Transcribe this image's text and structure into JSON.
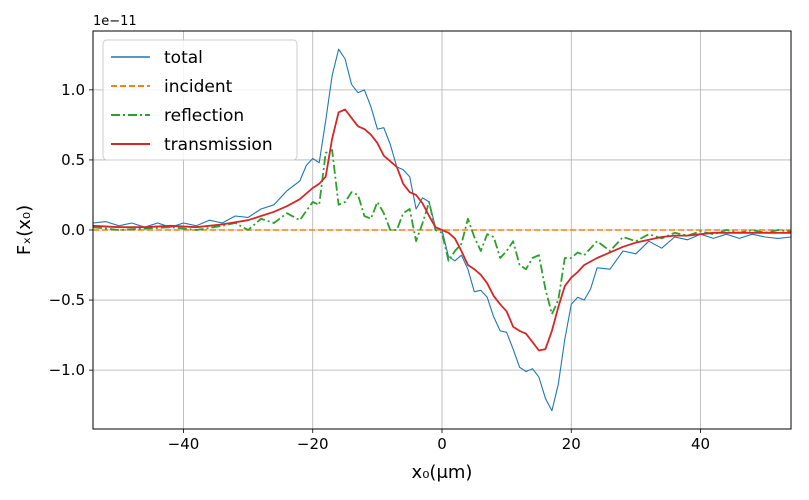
{
  "chart_data": {
    "type": "line",
    "xlabel": "x₀(μm)",
    "ylabel": "Fₓ(x₀)",
    "y_offset_label": "1e−11",
    "y_multiplier": 1e-11,
    "xlim": [
      -54,
      54
    ],
    "ylim": [
      -1.42,
      1.42
    ],
    "x_ticks": [
      -40,
      -20,
      0,
      20,
      40
    ],
    "x_tick_labels": [
      "−40",
      "−20",
      "0",
      "20",
      "40"
    ],
    "y_ticks": [
      -1.0,
      -0.5,
      0.0,
      0.5,
      1.0
    ],
    "y_tick_labels": [
      "−1.0",
      "−0.5",
      "0.0",
      "0.5",
      "1.0"
    ],
    "grid": true,
    "legend_position": "top-left",
    "series": [
      {
        "name": "total",
        "color": "#1f77b4",
        "style": "solid",
        "width": 1.1,
        "x": [
          -54,
          -52,
          -50,
          -48,
          -46,
          -44,
          -42,
          -40,
          -38,
          -36,
          -34,
          -32,
          -30,
          -28,
          -26,
          -24,
          -22,
          -21,
          -20,
          -19,
          -18,
          -17,
          -16,
          -15,
          -14,
          -13,
          -12,
          -11,
          -10,
          -9,
          -8,
          -7,
          -6,
          -5,
          -4,
          -3,
          -2,
          -1,
          0,
          1,
          2,
          3,
          4,
          5,
          6,
          7,
          8,
          9,
          10,
          11,
          12,
          13,
          14,
          15,
          16,
          17,
          18,
          19,
          20,
          21,
          22,
          23,
          24,
          26,
          28,
          30,
          32,
          34,
          36,
          38,
          40,
          42,
          44,
          46,
          48,
          50,
          52,
          54
        ],
        "y": [
          0.05,
          0.06,
          0.03,
          0.05,
          0.02,
          0.05,
          0.02,
          0.05,
          0.03,
          0.07,
          0.05,
          0.1,
          0.09,
          0.15,
          0.18,
          0.28,
          0.35,
          0.46,
          0.51,
          0.48,
          0.78,
          1.1,
          1.29,
          1.22,
          1.04,
          0.98,
          1.0,
          0.88,
          0.72,
          0.73,
          0.61,
          0.45,
          0.43,
          0.38,
          0.15,
          0.23,
          0.2,
          0.02,
          0.0,
          -0.19,
          -0.22,
          -0.18,
          -0.28,
          -0.44,
          -0.43,
          -0.48,
          -0.62,
          -0.72,
          -0.73,
          -0.85,
          -0.98,
          -1.01,
          -0.99,
          -1.05,
          -1.2,
          -1.29,
          -1.1,
          -0.78,
          -0.53,
          -0.48,
          -0.5,
          -0.42,
          -0.27,
          -0.28,
          -0.15,
          -0.17,
          -0.08,
          -0.13,
          -0.05,
          -0.07,
          -0.03,
          -0.06,
          -0.03,
          -0.06,
          -0.03,
          -0.05,
          -0.06,
          -0.05
        ]
      },
      {
        "name": "incident",
        "color": "#ff7f0e",
        "style": "dashed",
        "width": 1.6,
        "x": [
          -54,
          54
        ],
        "y": [
          0.0,
          0.0
        ]
      },
      {
        "name": "reflection",
        "color": "#2ca02c",
        "style": "dashdot",
        "width": 1.8,
        "x": [
          -54,
          -50,
          -46,
          -42,
          -38,
          -34,
          -32,
          -30,
          -28,
          -26,
          -24,
          -22,
          -20,
          -19,
          -18,
          -17,
          -16,
          -15,
          -14,
          -13,
          -12,
          -11,
          -10,
          -9,
          -8,
          -7,
          -6,
          -5,
          -4,
          -3,
          -2,
          -1,
          0,
          1,
          2,
          3,
          4,
          5,
          6,
          7,
          8,
          9,
          10,
          11,
          12,
          13,
          14,
          15,
          16,
          17,
          18,
          19,
          20,
          21,
          22,
          24,
          26,
          28,
          30,
          32,
          34,
          36,
          38,
          40,
          42,
          44,
          46,
          48,
          50,
          52,
          54
        ],
        "y": [
          0.02,
          0.0,
          0.01,
          0.02,
          0.0,
          0.03,
          0.05,
          0.0,
          0.08,
          0.05,
          0.12,
          0.07,
          0.2,
          0.18,
          0.55,
          0.57,
          0.18,
          0.2,
          0.27,
          0.25,
          0.1,
          0.08,
          0.2,
          0.12,
          0.0,
          0.0,
          0.12,
          0.15,
          -0.08,
          0.05,
          0.2,
          0.0,
          -0.02,
          -0.22,
          -0.15,
          -0.1,
          0.08,
          -0.05,
          -0.15,
          -0.03,
          -0.05,
          -0.2,
          -0.15,
          -0.08,
          -0.25,
          -0.28,
          -0.2,
          -0.18,
          -0.42,
          -0.6,
          -0.5,
          -0.2,
          -0.2,
          -0.16,
          -0.18,
          -0.08,
          -0.15,
          -0.05,
          -0.08,
          -0.03,
          -0.06,
          -0.02,
          -0.04,
          -0.01,
          -0.03,
          0.0,
          -0.02,
          0.0,
          -0.02,
          0.0,
          -0.01
        ]
      },
      {
        "name": "transmission",
        "color": "#d62728",
        "style": "solid",
        "width": 1.8,
        "x": [
          -54,
          -50,
          -46,
          -42,
          -38,
          -34,
          -30,
          -28,
          -26,
          -24,
          -22,
          -20,
          -19,
          -18,
          -17,
          -16,
          -15,
          -14,
          -13,
          -12,
          -11,
          -10,
          -9,
          -8,
          -7,
          -6,
          -5,
          -4,
          -3,
          -2,
          -1,
          0,
          1,
          2,
          3,
          4,
          5,
          6,
          7,
          8,
          9,
          10,
          11,
          12,
          13,
          14,
          15,
          16,
          17,
          18,
          19,
          20,
          21,
          22,
          24,
          26,
          28,
          30,
          32,
          34,
          36,
          38,
          40,
          42,
          44,
          46,
          48,
          50,
          52,
          54
        ],
        "y": [
          0.03,
          0.02,
          0.02,
          0.03,
          0.02,
          0.04,
          0.07,
          0.1,
          0.13,
          0.17,
          0.22,
          0.3,
          0.33,
          0.38,
          0.65,
          0.84,
          0.86,
          0.8,
          0.74,
          0.72,
          0.68,
          0.62,
          0.53,
          0.49,
          0.45,
          0.33,
          0.27,
          0.25,
          0.19,
          0.1,
          0.02,
          0.0,
          -0.02,
          -0.06,
          -0.15,
          -0.25,
          -0.28,
          -0.32,
          -0.38,
          -0.47,
          -0.53,
          -0.58,
          -0.69,
          -0.72,
          -0.74,
          -0.8,
          -0.86,
          -0.85,
          -0.72,
          -0.55,
          -0.4,
          -0.34,
          -0.3,
          -0.25,
          -0.2,
          -0.16,
          -0.12,
          -0.09,
          -0.07,
          -0.05,
          -0.04,
          -0.04,
          -0.03,
          -0.02,
          -0.02,
          -0.02,
          -0.02,
          -0.02,
          -0.02,
          -0.02
        ]
      }
    ]
  }
}
